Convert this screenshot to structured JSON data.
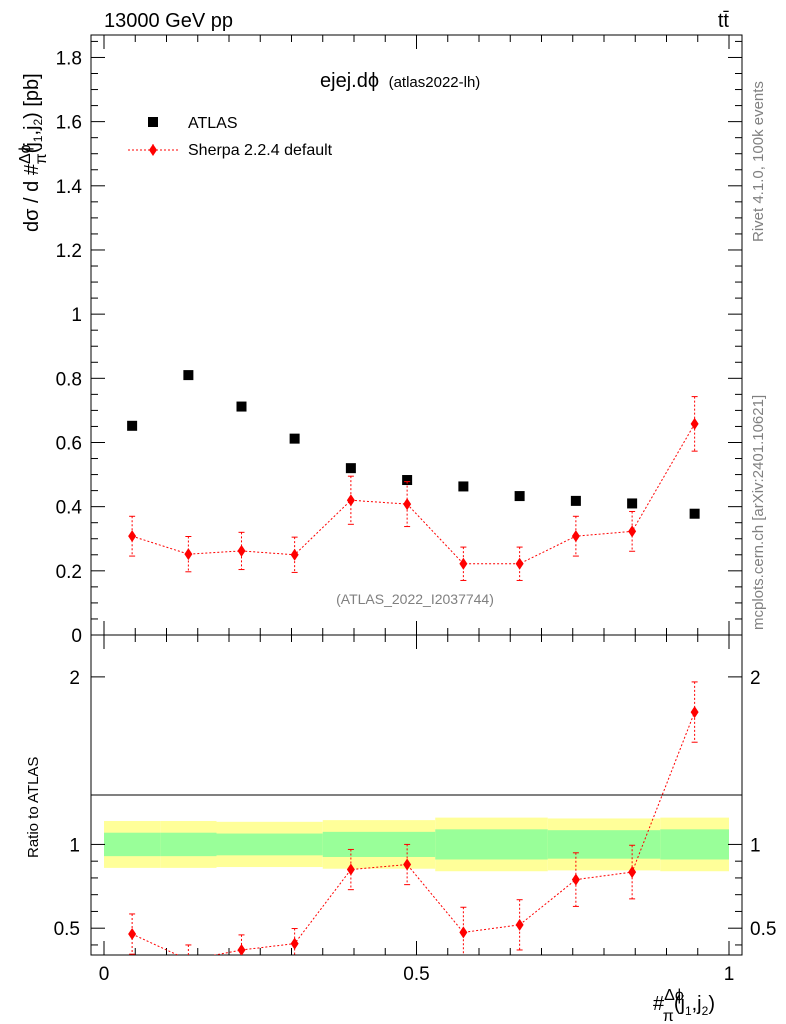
{
  "header": {
    "energy_label": "13000 GeV pp",
    "process_label": "tt̄",
    "side_rivet": "Rivet 4.1.0,  100k events",
    "side_mcplots": "mcplots.cern.ch [arXiv:2401.10621]"
  },
  "chart_data": {
    "type": "scatter",
    "title_main": "ejej.dϕ",
    "title_sub": "(atlas2022-lh)",
    "watermark": "(ATLAS_2022_I2037744)",
    "xlabel": "#Δϕ/π(j1,j2)",
    "ylabel": "dσ / d #Δϕ/π(j1,j2) [pb]",
    "ratio_ylabel": "Ratio to ATLAS",
    "xlim": [
      0,
      1
    ],
    "ylim": [
      0,
      1.87
    ],
    "ratio_ylim": [
      0.34,
      2.25
    ],
    "x_ticks": [
      "0",
      "0.5",
      "1"
    ],
    "y_ticks": [
      "0",
      "0.2",
      "0.4",
      "0.6",
      "0.8",
      "1",
      "1.2",
      "1.4",
      "1.6",
      "1.8"
    ],
    "ratio_ticks": [
      "0.5",
      "1",
      "2"
    ],
    "legend": [
      {
        "name": "ATLAS",
        "marker": "square",
        "color": "#000000"
      },
      {
        "name": "Sherpa 2.2.4 default",
        "marker": "diamond",
        "color": "#ff0000"
      }
    ],
    "bin_edges": [
      0,
      0.09,
      0.18,
      0.26,
      0.35,
      0.44,
      0.53,
      0.62,
      0.71,
      0.8,
      0.89,
      1.0
    ],
    "x": [
      0.045,
      0.135,
      0.22,
      0.305,
      0.395,
      0.485,
      0.575,
      0.665,
      0.755,
      0.845,
      0.945
    ],
    "series": [
      {
        "name": "ATLAS",
        "values": [
          0.652,
          0.81,
          0.712,
          0.612,
          0.52,
          0.483,
          0.463,
          0.433,
          0.418,
          0.41,
          0.378
        ]
      },
      {
        "name": "Sherpa 2.2.4 default",
        "values": [
          0.308,
          0.252,
          0.262,
          0.25,
          0.42,
          0.408,
          0.222,
          0.222,
          0.308,
          0.323,
          0.658
        ],
        "err": [
          0.062,
          0.055,
          0.058,
          0.055,
          0.075,
          0.07,
          0.052,
          0.052,
          0.062,
          0.062,
          0.085
        ]
      }
    ],
    "ratio": {
      "values": [
        0.465,
        0.31,
        0.37,
        0.408,
        0.85,
        0.88,
        0.475,
        0.52,
        0.79,
        0.835,
        1.79
      ],
      "err": [
        0.12,
        0.09,
        0.09,
        0.09,
        0.12,
        0.12,
        0.15,
        0.15,
        0.16,
        0.16,
        0.18
      ],
      "band_inner": [
        0.07,
        0.07,
        0.065,
        0.065,
        0.075,
        0.075,
        0.09,
        0.09,
        0.085,
        0.085,
        0.09
      ],
      "band_outer": [
        0.14,
        0.14,
        0.135,
        0.135,
        0.145,
        0.145,
        0.16,
        0.16,
        0.155,
        0.155,
        0.16
      ]
    }
  }
}
